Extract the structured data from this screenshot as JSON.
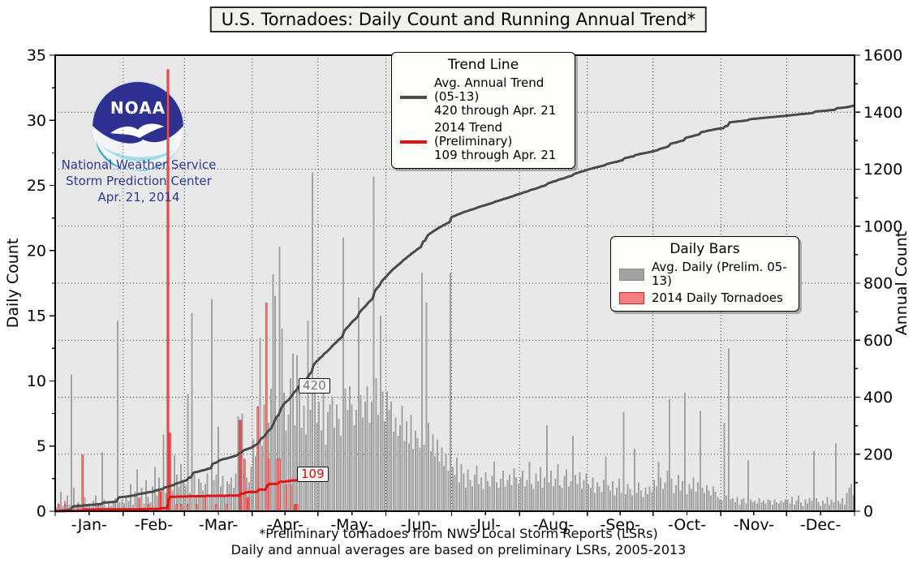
{
  "title": {
    "text": "U.S. Tornadoes: Daily Count and Running Annual Trend*"
  },
  "branding": {
    "logo_text": "NOAA",
    "line1": "National Weather Service",
    "line2": "Storm Prediction Center",
    "line3": "Apr. 21, 2014"
  },
  "legend_trend": {
    "title": "Trend Line",
    "items": [
      {
        "line1": "Avg. Annual Trend (05-13)",
        "line2": "420 through Apr. 21",
        "color": "#4a4a4a"
      },
      {
        "line1": "2014 Trend (Preliminary)",
        "line2": "109 through Apr. 21",
        "color": "#e51212"
      }
    ]
  },
  "legend_bars": {
    "title": "Daily Bars",
    "items": [
      {
        "label": "Avg. Daily (Prelim. 05-13)",
        "fill": "#a2a2a2",
        "edge": "#8a8a8a"
      },
      {
        "label": "2014 Daily Tornadoes",
        "fill": "#f28080",
        "edge": "#d42020"
      }
    ]
  },
  "annotations": {
    "avg_trend_label": "420",
    "trend_2014_label": "109"
  },
  "footnotes": {
    "line1": "*Preliminary tornadoes from NWS Local Storm Reports (LSRs)",
    "line2": "Daily and annual averages are based on preliminary LSRs, 2005-2013"
  },
  "chart_data": {
    "type": "bar",
    "title": "U.S. Tornadoes: Daily Count and Running Annual Trend*",
    "x_unit": "day of year",
    "month_labels": [
      "-Jan-",
      "-Feb-",
      "-Mar-",
      "-Apr-",
      "-May-",
      "-Jun-",
      "-Jul-",
      "-Aug-",
      "-Sep-",
      "-Oct-",
      "-Nov-",
      "-Dec-"
    ],
    "month_days": [
      31,
      28,
      31,
      30,
      31,
      30,
      31,
      31,
      30,
      31,
      30,
      31
    ],
    "left_axis": {
      "label": "Daily Count",
      "min": 0,
      "max": 35,
      "ticks": [
        0,
        5,
        10,
        15,
        20,
        25,
        30,
        35
      ],
      "minor_step": 2.5
    },
    "right_axis": {
      "label": "Annual Count",
      "min": 0,
      "max": 1600,
      "ticks": [
        0,
        200,
        400,
        600,
        800,
        1000,
        1200,
        1400,
        1600
      ],
      "minor_step": 100
    },
    "grid": {
      "style": "dotted",
      "horizontal_at_right_axis_step": 200,
      "vertical_at": "month-starts",
      "color": "#3f3f3f"
    },
    "plot_bg": "#e8e8e8",
    "series": [
      {
        "name": "Avg. Daily (Prelim. 05-13)",
        "type": "bar",
        "axis": "left",
        "fill": "#a2a2a2",
        "values_by_month": [
          [
            0.3,
            0.6,
            1.5,
            0.4,
            0.8,
            1.2,
            0.5,
            10.5,
            1.8,
            0.4,
            0.7,
            0.3,
            0.9,
            1.1,
            0.4,
            0.6,
            0.3,
            0.8,
            1.2,
            0.4,
            0.6,
            4.5,
            0.9,
            0.3,
            0.7,
            0.4,
            0.8,
            1.0,
            14.6,
            0.7,
            0.9
          ],
          [
            0.6,
            1.2,
            0.8,
            2.1,
            0.5,
            1.5,
            3.2,
            0.9,
            1.8,
            0.6,
            2.4,
            1.1,
            0.7,
            1.9,
            3.4,
            1.2,
            2.6,
            0.8,
            5.9,
            1.4,
            2.2,
            3.1,
            1.6,
            4.3,
            2.8,
            1.9,
            3.6,
            2.3
          ],
          [
            2.0,
            9.0,
            1.4,
            15.2,
            2.8,
            1.1,
            2.5,
            2.2,
            1.6,
            2.1,
            2.9,
            1.3,
            16.3,
            2.4,
            2.8,
            6.5,
            1.9,
            2.7,
            1.2,
            2.3,
            2.1,
            2.6,
            1.8,
            2.9,
            7.3,
            2.2,
            7.5,
            3.1,
            2.6,
            2.2,
            3.4
          ],
          [
            5.5,
            4.2,
            7.0,
            13.3,
            5.0,
            8.2,
            11.5,
            6.8,
            9.4,
            18.2,
            16.5,
            7.2,
            20.3,
            14.0,
            9.1,
            6.2,
            7.4,
            10.2,
            12.1,
            6.6,
            12.0,
            9.3,
            6.4,
            8.1,
            5.9,
            14.6,
            7.8,
            26.0,
            9.5,
            6.8
          ],
          [
            8.4,
            6.2,
            9.8,
            5.1,
            7.6,
            8.2,
            8.8,
            6.4,
            8.2,
            7.1,
            5.8,
            21.0,
            9.4,
            7.8,
            9.6,
            8.2,
            6.6,
            7.8,
            16.4,
            8.9,
            7.2,
            8.4,
            9.6,
            6.8,
            8.4,
            25.7,
            10.2,
            7.4,
            15.0,
            9.2,
            6.9
          ],
          [
            9.2,
            7.8,
            8.4,
            6.1,
            7.2,
            5.8,
            6.6,
            8.1,
            5.4,
            6.9,
            5.2,
            7.4,
            4.8,
            6.2,
            5.6,
            4.9,
            18.3,
            5.1,
            16.0,
            6.8,
            4.6,
            5.9,
            4.2,
            5.5,
            3.8,
            4.9,
            3.5,
            4.4,
            3.1,
            18.3
          ],
          [
            3.4,
            2.8,
            4.1,
            2.2,
            3.6,
            2.9,
            1.8,
            3.2,
            2.4,
            1.9,
            2.8,
            3.5,
            2.1,
            2.6,
            1.7,
            3.0,
            2.3,
            1.9,
            2.7,
            3.8,
            2.2,
            1.8,
            2.5,
            3.1,
            1.9,
            2.4,
            2.8,
            2.0,
            3.3,
            2.6,
            2.1
          ],
          [
            2.6,
            3.1,
            1.9,
            2.4,
            3.8,
            2.1,
            1.7,
            2.9,
            2.3,
            3.4,
            1.8,
            2.6,
            6.6,
            2.2,
            3.1,
            1.9,
            2.5,
            3.6,
            2.0,
            1.8,
            2.7,
            3.2,
            1.9,
            2.3,
            5.8,
            2.8,
            2.1,
            3.0,
            1.7,
            2.4,
            2.9
          ],
          [
            2.1,
            1.8,
            2.6,
            1.4,
            2.2,
            1.9,
            1.5,
            2.4,
            4.2,
            2.0,
            1.6,
            2.3,
            1.2,
            1.8,
            2.5,
            1.4,
            7.6,
            1.3,
            2.1,
            1.7,
            1.2,
            4.8,
            1.4,
            2.2,
            1.6,
            1.1,
            1.8,
            1.3,
            1.9,
            1.5
          ],
          [
            2.4,
            1.9,
            3.8,
            2.6,
            1.7,
            2.2,
            3.1,
            8.6,
            2.5,
            1.4,
            2.0,
            2.8,
            1.6,
            2.3,
            9.1,
            1.3,
            2.1,
            1.7,
            2.6,
            1.5,
            2.2,
            7.7,
            1.8,
            1.4,
            2.0,
            1.6,
            1.2,
            1.9,
            1.5,
            1.1,
            0.9
          ],
          [
            0.8,
            6.8,
            1.2,
            12.5,
            0.9,
            1.0,
            0.7,
            1.1,
            0.5,
            0.9,
            1.0,
            0.6,
            3.9,
            0.9,
            0.7,
            0.8,
            0.6,
            1.0,
            0.7,
            0.8,
            0.6,
            0.9,
            0.8,
            0.5,
            0.9,
            0.7,
            0.6,
            0.8,
            0.7,
            0.9
          ],
          [
            0.9,
            0.6,
            1.1,
            0.5,
            0.8,
            1.2,
            0.7,
            0.4,
            0.9,
            0.6,
            1.0,
            0.8,
            4.6,
            1.0,
            0.7,
            0.4,
            0.8,
            0.6,
            1.1,
            0.5,
            0.9,
            0.7,
            5.2,
            0.8,
            0.6,
            1.0,
            0.5,
            1.4,
            1.8,
            2.1,
            1.2
          ]
        ]
      },
      {
        "name": "2014 Daily Tornadoes",
        "type": "bar",
        "axis": "left",
        "fill": "#f28080",
        "edge": "#d42020",
        "ends_at": "Apr. 21",
        "values_by_month": [
          [
            0,
            0.5,
            0,
            0,
            0.5,
            0,
            0,
            0,
            0,
            0,
            0.5,
            0,
            4.3,
            0,
            0,
            0,
            0,
            0,
            0,
            0.5,
            0,
            0,
            0,
            0,
            0,
            0,
            0,
            0,
            0,
            0,
            0
          ],
          [
            0,
            0,
            0,
            0,
            0,
            0,
            0,
            1.0,
            0,
            0,
            0,
            0.5,
            0,
            0,
            0,
            0,
            1.5,
            1.5,
            0,
            0,
            33.9,
            6.0,
            0,
            0,
            0.5,
            0,
            0.5,
            0
          ],
          [
            0,
            0.5,
            0,
            0,
            0,
            0.5,
            0,
            0,
            0,
            1.0,
            0,
            0,
            0,
            0,
            0.5,
            0,
            0,
            0,
            0,
            0.5,
            0,
            0,
            0,
            0,
            0,
            7.0,
            0,
            4.0,
            1.0,
            1.0,
            0
          ],
          [
            0,
            0,
            8.0,
            0,
            0,
            0,
            16.0,
            4.0,
            0,
            0,
            0,
            4.0,
            4.0,
            0,
            0,
            2.0,
            0,
            2.0,
            0,
            0.5,
            0.5
          ]
        ]
      },
      {
        "name": "Avg. Annual Trend (05-13)",
        "type": "cumulative-line",
        "axis": "right",
        "color": "#4a4a4a",
        "source_series": 0,
        "value_through_apr_21": 420,
        "year_end_value": 1420
      },
      {
        "name": "2014 Trend (Preliminary)",
        "type": "cumulative-line",
        "axis": "right",
        "color": "#e51212",
        "source_series": 1,
        "value_through_apr_21": 109,
        "ends_at_day": 111
      }
    ]
  }
}
